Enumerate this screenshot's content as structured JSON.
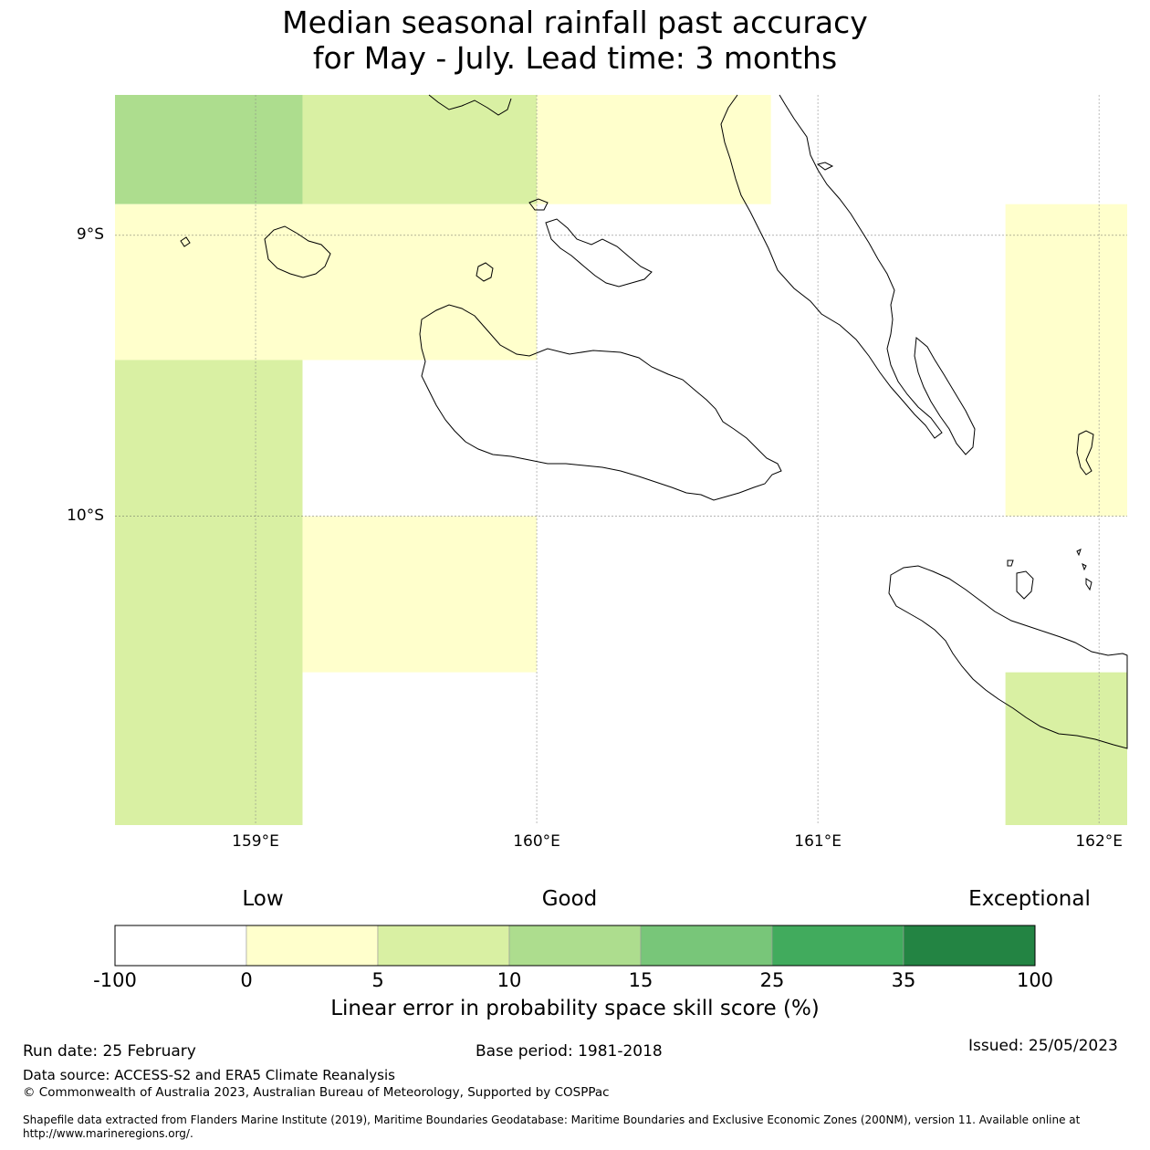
{
  "title": {
    "line1": "Median seasonal rainfall past accuracy",
    "line2": "for May - July. Lead time: 3 months"
  },
  "map": {
    "lon_range": [
      158.5,
      162.1
    ],
    "lat_range": [
      -11.1,
      -8.5
    ],
    "lat_ticks": [
      {
        "value": -9,
        "label": "9°S"
      },
      {
        "value": -10,
        "label": "10°S"
      }
    ],
    "lon_ticks": [
      {
        "value": 159,
        "label": "159°E"
      },
      {
        "value": 160,
        "label": "160°E"
      },
      {
        "value": 161,
        "label": "161°E"
      },
      {
        "value": 162,
        "label": "162°E"
      }
    ],
    "cells": [
      {
        "lon0": 158.5,
        "lon1": 159.167,
        "lat0": -8.5,
        "lat1": -8.889,
        "skill_class": 3
      },
      {
        "lon0": 159.167,
        "lon1": 160.0,
        "lat0": -8.5,
        "lat1": -8.889,
        "skill_class": 2
      },
      {
        "lon0": 160.0,
        "lon1": 160.833,
        "lat0": -8.5,
        "lat1": -8.889,
        "skill_class": 1
      },
      {
        "lon0": 158.5,
        "lon1": 160.0,
        "lat0": -8.889,
        "lat1": -9.444,
        "skill_class": 1
      },
      {
        "lon0": 158.5,
        "lon1": 159.167,
        "lat0": -9.444,
        "lat1": -11.1,
        "skill_class": 2
      },
      {
        "lon0": 159.167,
        "lon1": 160.0,
        "lat0": -10.0,
        "lat1": -10.556,
        "skill_class": 1
      },
      {
        "lon0": 161.667,
        "lon1": 162.1,
        "lat0": -8.889,
        "lat1": -10.0,
        "skill_class": 1
      },
      {
        "lon0": 161.667,
        "lon1": 162.1,
        "lat0": -10.556,
        "lat1": -11.1,
        "skill_class": 2
      }
    ]
  },
  "colorbar": {
    "categories": {
      "low": "Low",
      "good": "Good",
      "exceptional": "Exceptional"
    },
    "bounds": [
      "-100",
      "0",
      "5",
      "10",
      "15",
      "25",
      "35",
      "100"
    ],
    "colors": [
      "#ffffff",
      "#ffffcc",
      "#d9f0a3",
      "#addd8e",
      "#78c679",
      "#41ab5d",
      "#238443"
    ],
    "label": "Linear error in probability space skill score (%)"
  },
  "footer": {
    "run_date": "Run date: 25 February",
    "base_period": "Base period: 1981-2018",
    "issued": "Issued: 25/05/2023",
    "data_source": "Data source: ACCESS-S2 and ERA5 Climate Reanalysis",
    "copyright": "© Commonwealth of Australia 2023, Australian Bureau of Meteorology, Supported by COSPPac",
    "shapefile": "Shapefile data extracted from Flanders Marine Institute (2019), Maritime Boundaries Geodatabase: Maritime Boundaries and Exclusive Economic Zones (200NM), version 11. Available online at http://www.marineregions.org/."
  }
}
